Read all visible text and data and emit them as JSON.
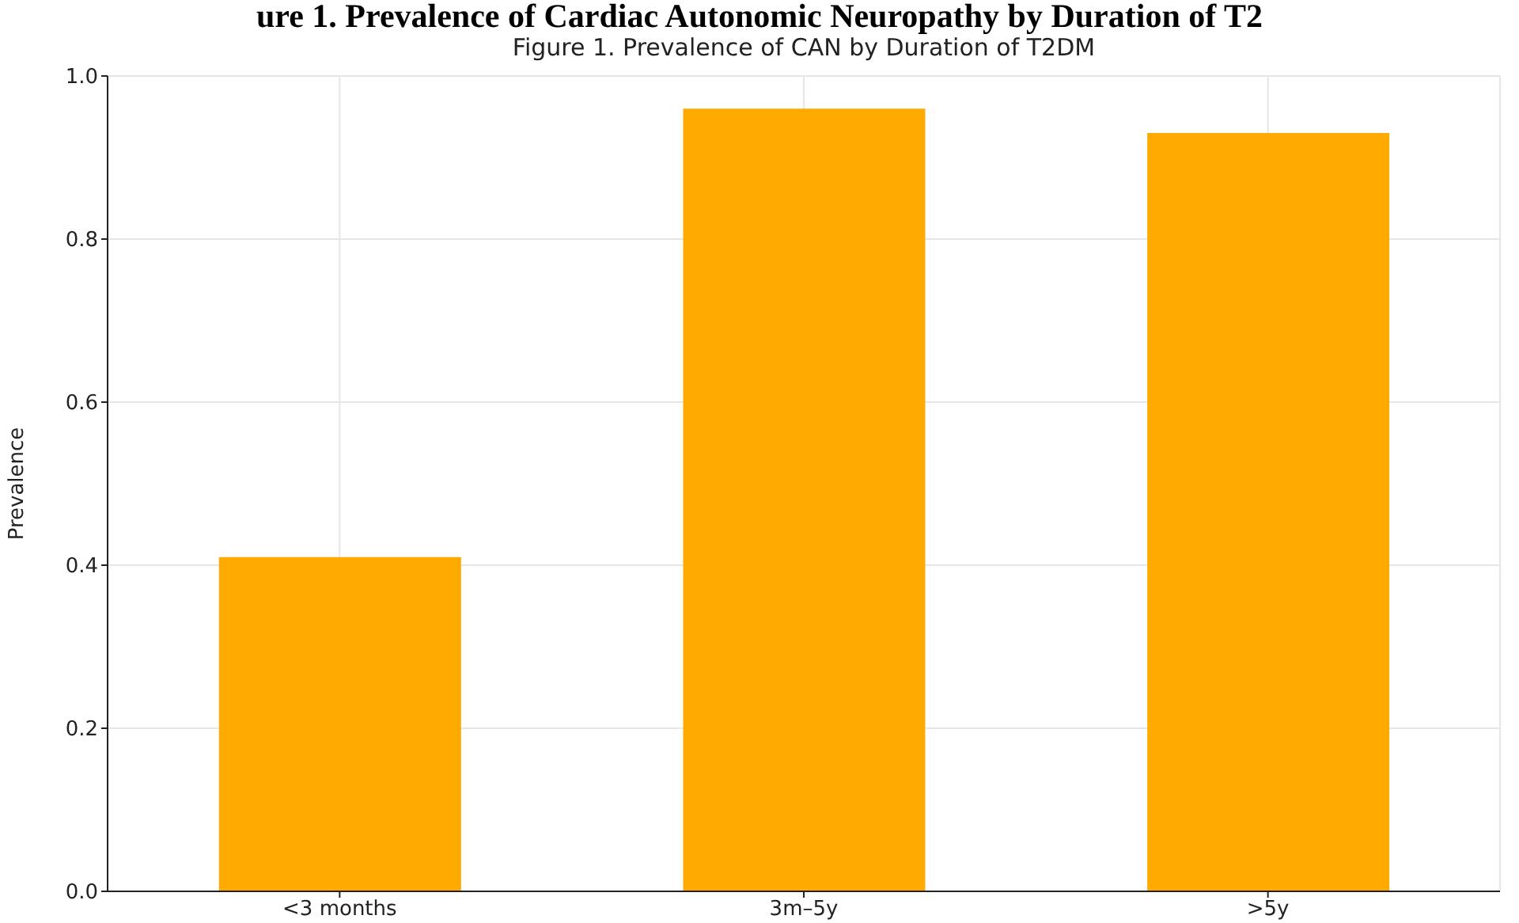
{
  "chart_data": {
    "type": "bar",
    "title": "ure 1. Prevalence of Cardiac Autonomic Neuropathy by Duration of T2",
    "subtitle": "Figure 1. Prevalence of CAN by Duration of T2DM",
    "ylabel": "Prevalence",
    "categories": [
      "<3 months",
      "3m–5y",
      ">5y"
    ],
    "values": [
      0.41,
      0.96,
      0.93
    ],
    "color": "#ffaa00",
    "ylim": [
      0,
      1
    ],
    "yticks": [
      {
        "value": 0,
        "label": "0.0"
      },
      {
        "value": 0.2,
        "label": "0.2"
      },
      {
        "value": 0.4,
        "label": "0.4"
      },
      {
        "value": 0.6,
        "label": "0.6"
      },
      {
        "value": 0.8,
        "label": "0.8"
      },
      {
        "value": 1,
        "label": "1.0"
      }
    ],
    "grid": true,
    "legend": false
  }
}
